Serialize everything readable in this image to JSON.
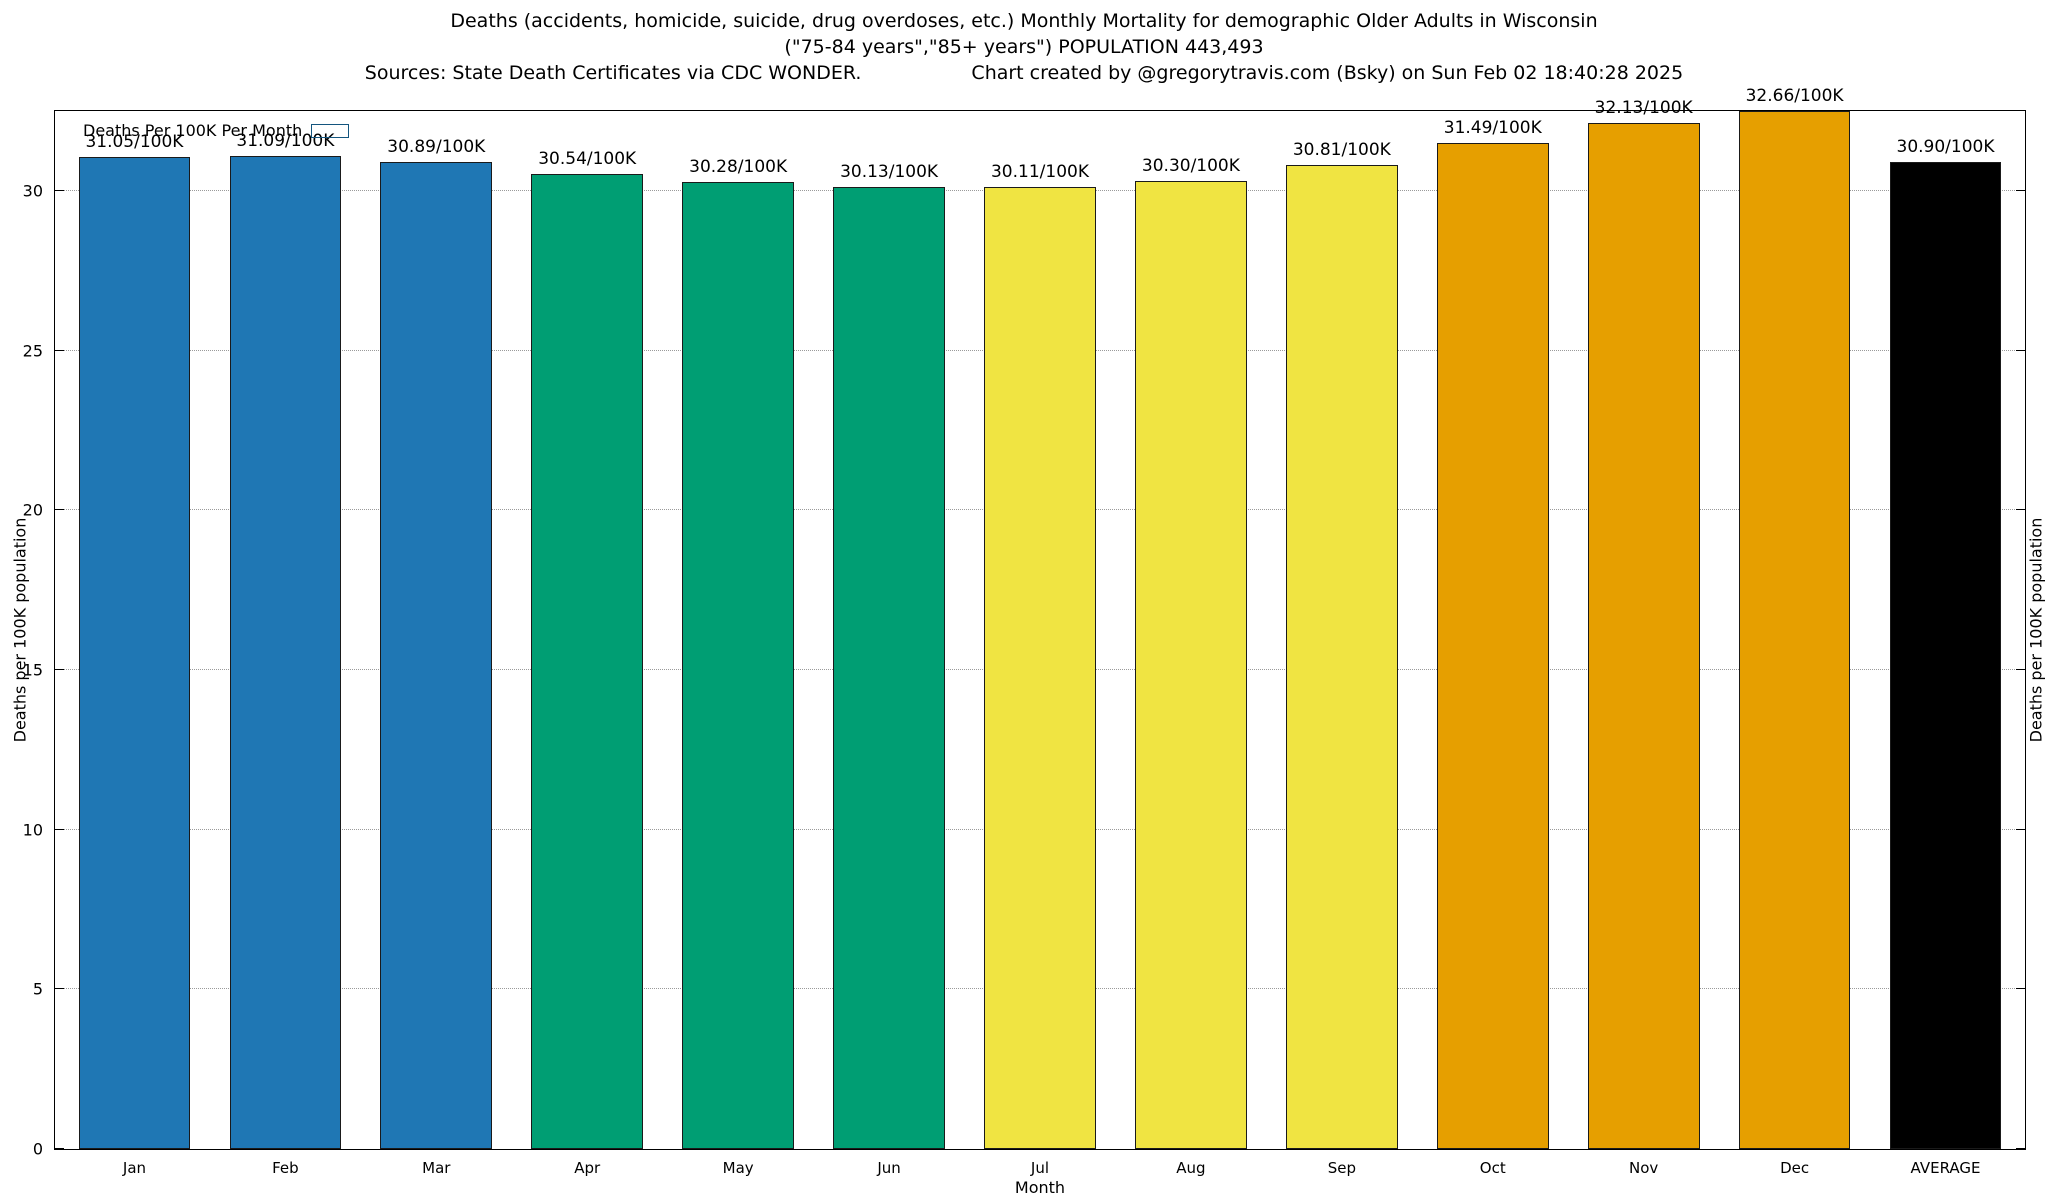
{
  "title": {
    "line1": "Deaths (accidents, homicide, suicide, drug overdoses, etc.) Monthly Mortality for demographic Older Adults in Wisconsin",
    "line2": "(\"75-84 years\",\"85+ years\") POPULATION 443,493",
    "line3_left": "Sources: State Death Certificates via CDC WONDER.",
    "line3_right": "Chart created by @gregorytravis.com (Bsky) on Sun Feb 02 18:40:28 2025"
  },
  "legend": {
    "label": "Deaths Per 100K Per Month",
    "swatch_color": "#1F77B4"
  },
  "axes": {
    "x_label": "Month",
    "y_label_left": "Deaths per 100K population",
    "y_label_right": "Deaths per 100K population",
    "y_ticks": [
      0,
      5,
      10,
      15,
      20,
      25,
      30
    ]
  },
  "chart_data": {
    "type": "bar",
    "title": "Deaths (accidents, homicide, suicide, drug overdoses, etc.) Monthly Mortality for demographic Older Adults in Wisconsin",
    "subtitle": "(\"75-84 years\",\"85+ years\") POPULATION 443,493",
    "source": "Sources: State Death Certificates via CDC WONDER.",
    "credit": "Chart created by @gregorytravis.com (Bsky) on Sun Feb 02 18:40:28 2025",
    "series_name": "Deaths Per 100K Per Month",
    "categories": [
      "Jan",
      "Feb",
      "Mar",
      "Apr",
      "May",
      "Jun",
      "Jul",
      "Aug",
      "Sep",
      "Oct",
      "Nov",
      "Dec",
      "AVERAGE"
    ],
    "values": [
      31.05,
      31.09,
      30.89,
      30.54,
      30.28,
      30.13,
      30.11,
      30.3,
      30.81,
      31.49,
      32.13,
      32.66,
      30.9
    ],
    "labels": [
      "31.05/100K",
      "31.09/100K",
      "30.89/100K",
      "30.54/100K",
      "30.28/100K",
      "30.13/100K",
      "30.11/100K",
      "30.30/100K",
      "30.81/100K",
      "31.49/100K",
      "32.13/100K",
      "32.66/100K",
      "30.90/100K"
    ],
    "bar_colors": [
      "#1F77B4",
      "#1F77B4",
      "#1F77B4",
      "#009E73",
      "#009E73",
      "#009E73",
      "#F0E442",
      "#F0E442",
      "#F0E442",
      "#E69F00",
      "#E69F00",
      "#E69F00",
      "#000000"
    ],
    "xlabel": "Month",
    "ylabel": "Deaths per 100K population",
    "ylim": [
      0,
      32.5
    ],
    "grid": true,
    "legend_position": "top-left"
  }
}
